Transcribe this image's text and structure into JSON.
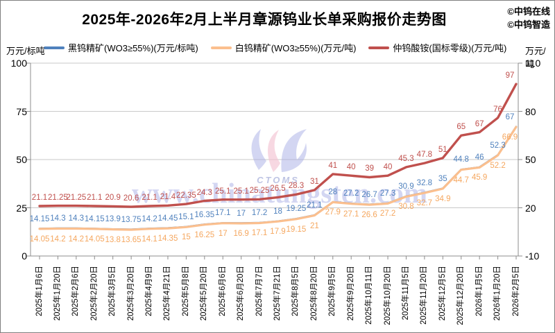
{
  "header": {
    "title": "2025年-2026年2月上半月章源钨业长单采购报价走势图",
    "attribution": [
      "©中钨在线",
      "©中钨智造"
    ]
  },
  "watermark": {
    "url_text": "www.chinatungsten.com",
    "logo_text": "CTOMS"
  },
  "colors": {
    "grid": "#C9C9C9",
    "axis": "#8C8C8C",
    "background": "#FFFFFF",
    "watermark_text": "#B7BBEA",
    "watermark_blue": "#A7ADE6",
    "watermark_pink": "#F3C3D3"
  },
  "chart_data": {
    "type": "line",
    "title": "2025年-2026年2月上半月章源钨业长单采购报价走势图",
    "categories": [
      "2025年1月6日",
      "2025年1月20日",
      "2025年2月6日",
      "2025年2月20日",
      "2025年3月5日",
      "2025年3月20日",
      "2025年4月9日",
      "2025年4月21日",
      "2025年5月8日",
      "2025年5月20日",
      "2025年6月6日",
      "2025年6月20日",
      "2025年7月7日",
      "2025年7月21日",
      "2025年8月5日",
      "2025年8月20日",
      "2025年9月5日",
      "2025年9月20日",
      "2025年10月11日",
      "2025年10月20日",
      "2025年11月5日",
      "2025年11月20日",
      "2025年12月5日",
      "2025年12月20日",
      "2026年1月5日",
      "2026年1月20日",
      "2026年2月5日"
    ],
    "series": [
      {
        "key": "black-tungsten-concentrate",
        "name": "黑钨精矿(WO3≥55%)(万元/标吨)",
        "color": "#4F81BD",
        "label_color": "#4F81BD",
        "axis": "left",
        "width": 2.8,
        "label_dy": -20,
        "values": [
          14.15,
          14.3,
          14.3,
          14.15,
          13.9,
          13.75,
          14.2,
          14.45,
          15.1,
          16.35,
          17.1,
          17,
          17.2,
          18,
          19.25,
          21.1,
          28,
          27.2,
          26.7,
          27.3,
          30.9,
          32.8,
          35,
          44.8,
          46,
          52.3,
          67
        ]
      },
      {
        "key": "white-tungsten-concentrate",
        "name": "白钨精矿(WO3≥55%)(万元/吨)",
        "color": "#FBBF8E",
        "label_color": "#F5A75F",
        "axis": "left",
        "width": 3.2,
        "label_dy": 9,
        "values": [
          14.05,
          14.2,
          14.2,
          14.05,
          13.8,
          13.65,
          14.1,
          14.35,
          15,
          16.25,
          17,
          16.9,
          17.1,
          17.9,
          19.15,
          21,
          27.9,
          27.1,
          26.6,
          27.2,
          30.8,
          32.7,
          34.9,
          44.7,
          45.9,
          52.2,
          66.9
        ]
      },
      {
        "key": "ammonium-paratungstate",
        "name": "仲钨酸铵(国标零级)(万元/吨)",
        "color": "#C0504D",
        "label_color": "#C0504D",
        "axis": "right",
        "width": 3.4,
        "label_dy": -18,
        "values": [
          21.1,
          21.25,
          21.25,
          21.1,
          20.9,
          20.6,
          21.1,
          21.4,
          22.35,
          24.3,
          25.1,
          25.1,
          25.25,
          26.5,
          28.3,
          31,
          41,
          40,
          39,
          40,
          45.3,
          47.8,
          51,
          65,
          67,
          76,
          97
        ]
      }
    ],
    "left_axis": {
      "label": "万元/标吨",
      "min": 0,
      "max": 100,
      "ticks": [
        0,
        25,
        50,
        75,
        100
      ]
    },
    "right_axis": {
      "label": "万元/吨",
      "min": -10,
      "max": 110,
      "ticks": [
        -10,
        20,
        50,
        80,
        110
      ]
    },
    "grid": true,
    "legend_position": "top"
  }
}
